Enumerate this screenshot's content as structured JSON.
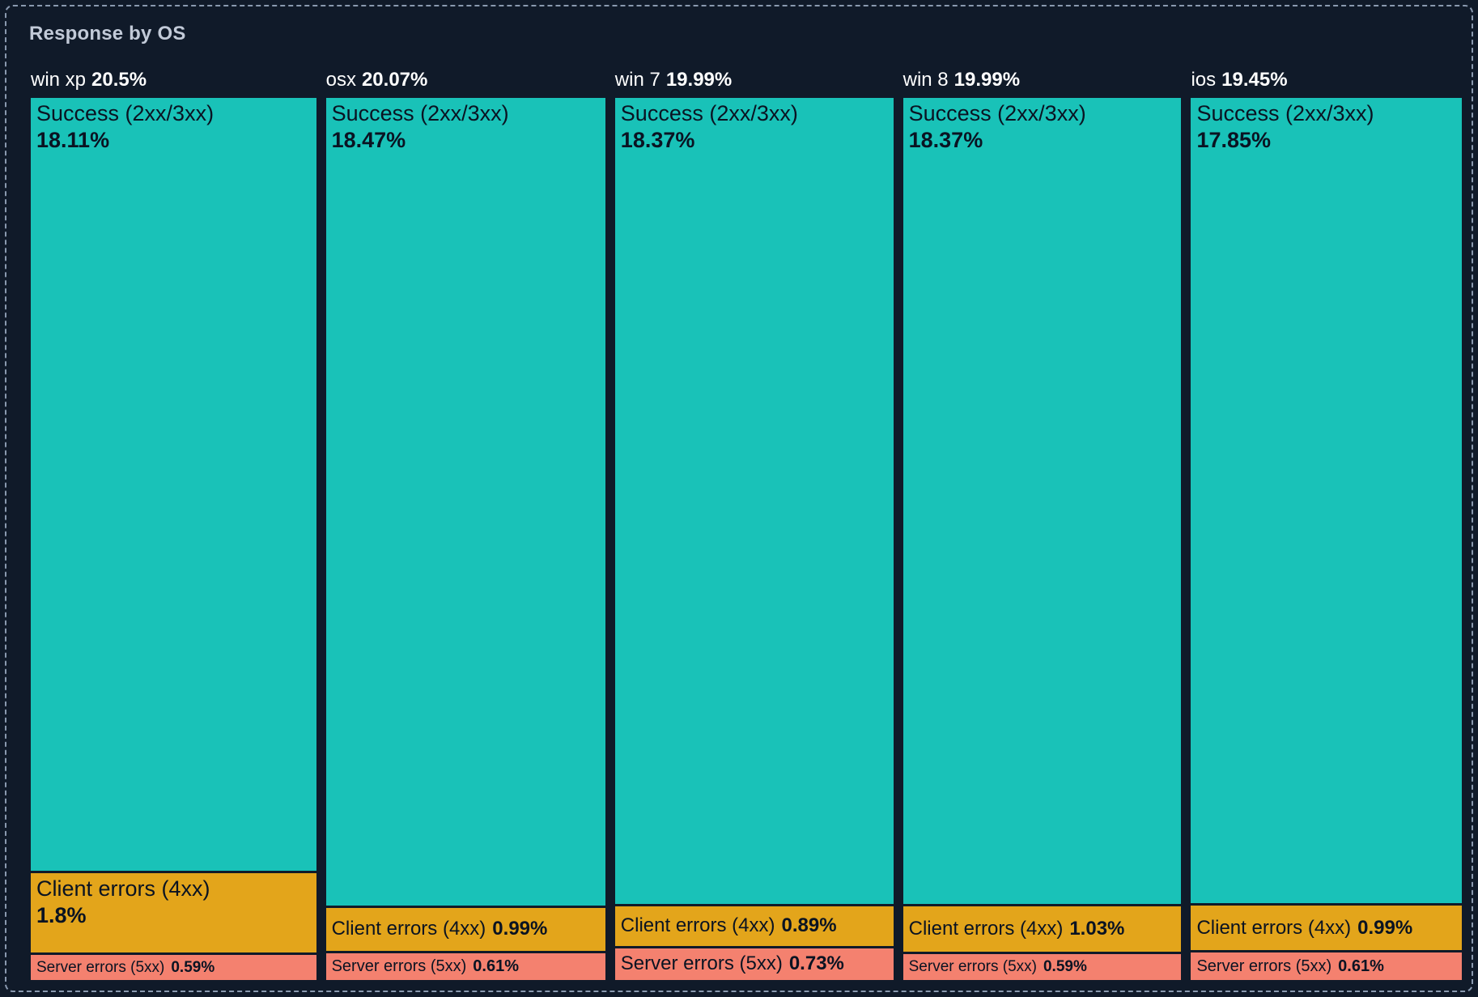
{
  "panel": {
    "title": "Response by OS"
  },
  "colors": {
    "background": "#101a29",
    "frame_border": "#8a99af",
    "title_text": "#c2cad8",
    "header_text": "#ffffff",
    "segment_text": "#0a1322",
    "success": "#19c2b8",
    "client_errors": "#e3a51b",
    "server_errors": "#f4816f"
  },
  "chart_data": {
    "type": "treemap",
    "title": "Response by OS",
    "layout_hint": "columns sized by OS total percent, segments stacked vertically by share, legend off, labels inside cells",
    "categories": [
      "win xp",
      "osx",
      "win 7",
      "win 8",
      "ios"
    ],
    "segment_labels": [
      "Success (2xx/3xx)",
      "Client errors (4xx)",
      "Server errors (5xx)"
    ],
    "series": [
      {
        "name": "win xp",
        "total": "20.5%",
        "total_value": 20.5,
        "segments": [
          {
            "kind": "success",
            "label": "Success (2xx/3xx)",
            "pct": "18.11%",
            "value": 18.11
          },
          {
            "kind": "client_errors",
            "label": "Client errors (4xx)",
            "pct": "1.8%",
            "value": 1.8
          },
          {
            "kind": "server_errors",
            "label": "Server errors (5xx)",
            "pct": "0.59%",
            "value": 0.59
          }
        ]
      },
      {
        "name": "osx",
        "total": "20.07%",
        "total_value": 20.07,
        "segments": [
          {
            "kind": "success",
            "label": "Success (2xx/3xx)",
            "pct": "18.47%",
            "value": 18.47
          },
          {
            "kind": "client_errors",
            "label": "Client errors (4xx)",
            "pct": "0.99%",
            "value": 0.99
          },
          {
            "kind": "server_errors",
            "label": "Server errors (5xx)",
            "pct": "0.61%",
            "value": 0.61
          }
        ]
      },
      {
        "name": "win 7",
        "total": "19.99%",
        "total_value": 19.99,
        "segments": [
          {
            "kind": "success",
            "label": "Success (2xx/3xx)",
            "pct": "18.37%",
            "value": 18.37
          },
          {
            "kind": "client_errors",
            "label": "Client errors (4xx)",
            "pct": "0.89%",
            "value": 0.89
          },
          {
            "kind": "server_errors",
            "label": "Server errors (5xx)",
            "pct": "0.73%",
            "value": 0.73
          }
        ]
      },
      {
        "name": "win 8",
        "total": "19.99%",
        "total_value": 19.99,
        "segments": [
          {
            "kind": "success",
            "label": "Success (2xx/3xx)",
            "pct": "18.37%",
            "value": 18.37
          },
          {
            "kind": "client_errors",
            "label": "Client errors (4xx)",
            "pct": "1.03%",
            "value": 1.03
          },
          {
            "kind": "server_errors",
            "label": "Server errors (5xx)",
            "pct": "0.59%",
            "value": 0.59
          }
        ]
      },
      {
        "name": "ios",
        "total": "19.45%",
        "total_value": 19.45,
        "segments": [
          {
            "kind": "success",
            "label": "Success (2xx/3xx)",
            "pct": "17.85%",
            "value": 17.85
          },
          {
            "kind": "client_errors",
            "label": "Client errors (4xx)",
            "pct": "0.99%",
            "value": 0.99
          },
          {
            "kind": "server_errors",
            "label": "Server errors (5xx)",
            "pct": "0.61%",
            "value": 0.61
          }
        ]
      }
    ]
  }
}
